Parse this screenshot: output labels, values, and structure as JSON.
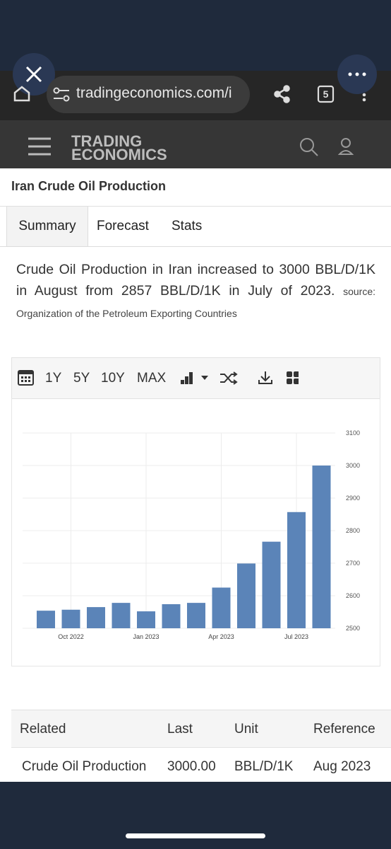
{
  "browser": {
    "url": "tradingeconomics.com/i",
    "tab_count": "5"
  },
  "header": {
    "logo_top": "TRADING",
    "logo_bottom": "ECONOMICS"
  },
  "page": {
    "title": "Iran Crude Oil Production",
    "tabs": [
      "Summary",
      "Forecast",
      "Stats"
    ],
    "summary": "Crude Oil Production in Iran increased to 3000 BBL/D/1K in August from 2857 BBL/D/1K in July of 2023.",
    "source": "source: Organization of the Petroleum Exporting Countries",
    "toolbar": [
      "1Y",
      "5Y",
      "10Y",
      "MAX"
    ]
  },
  "chart_data": {
    "type": "bar",
    "categories": [
      null,
      "Oct 2022",
      null,
      null,
      "Jan 2023",
      null,
      null,
      "Apr 2023",
      null,
      null,
      "Jul 2023",
      null
    ],
    "values": [
      2554,
      2557,
      2565,
      2578,
      2552,
      2574,
      2578,
      2625,
      2699,
      2766,
      2857,
      3000
    ],
    "color": "#5b84b8",
    "ylim": [
      2500,
      3100
    ],
    "yticks": [
      2500,
      2600,
      2700,
      2800,
      2900,
      3000,
      3100
    ],
    "y_axis_side": "right",
    "grid": true
  },
  "table": {
    "headers": [
      "Related",
      "Last",
      "Unit",
      "Reference"
    ],
    "rows": [
      [
        "Crude Oil Production",
        "3000.00",
        "BBL/D/1K",
        "Aug 2023"
      ]
    ]
  }
}
